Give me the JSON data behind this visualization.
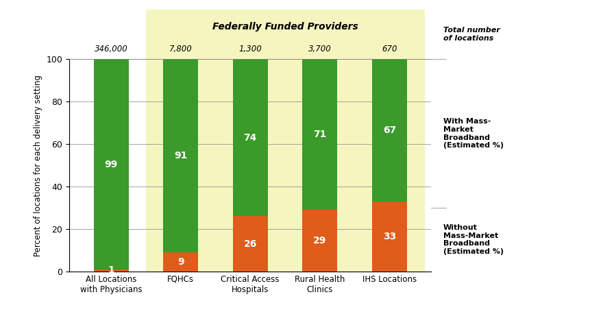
{
  "categories": [
    "All Locations\nwith Physicians",
    "FQHCs",
    "Critical Access\nHospitals",
    "Rural Health\nClinics",
    "IHS Locations"
  ],
  "totals": [
    "346,000",
    "7,800",
    "1,300",
    "3,700",
    "670"
  ],
  "without_broadband": [
    1,
    9,
    26,
    29,
    33
  ],
  "with_broadband": [
    99,
    91,
    74,
    71,
    67
  ],
  "color_without": "#E05C1A",
  "color_with": "#3A9A2A",
  "color_bg_yellow": "#F5F5C0",
  "ylabel": "Percent of locations for each delivery setting",
  "federally_label": "Federally Funded Providers",
  "right_label_with": "With Mass-\nMarket\nBroadband\n(Estimated %)",
  "right_label_without": "Without\nMass-Market\nBroadband\n(Estimated %)",
  "right_label_total": "Total number\nof locations",
  "bar_width": 0.5
}
